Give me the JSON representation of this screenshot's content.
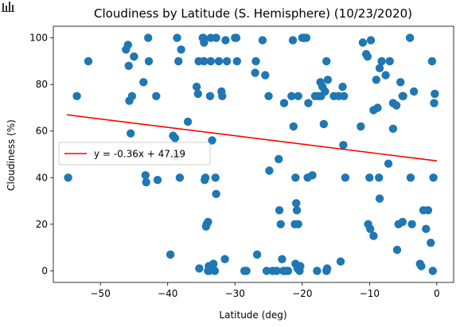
{
  "toolbar": {
    "chart_icon": "bar-chart-icon"
  },
  "chart_data": {
    "type": "scatter",
    "title": "Cloudiness by Latitude (S. Hemisphere) (10/23/2020)",
    "xlabel": "Latitude (deg)",
    "ylabel": "Cloudiness (%)",
    "xlim": [
      -57,
      2.5
    ],
    "ylim": [
      -5,
      105
    ],
    "xticks": [
      -50,
      -40,
      -30,
      -20,
      -10,
      0
    ],
    "xtick_labels": [
      "−50",
      "−40",
      "−30",
      "−20",
      "−10",
      "0"
    ],
    "yticks": [
      0,
      20,
      40,
      60,
      80,
      100
    ],
    "ytick_labels": [
      "0",
      "20",
      "40",
      "60",
      "80",
      "100"
    ],
    "grid": false,
    "legend_position": "center-left",
    "colors": {
      "points": "#1f77b4",
      "regression": "#ff0000"
    },
    "regression": {
      "label": "y = -0.36x + 47.19",
      "slope": -0.36,
      "intercept": 47.19
    },
    "points": [
      [
        -54.8,
        40
      ],
      [
        -53.5,
        75
      ],
      [
        -51.8,
        90
      ],
      [
        -46.2,
        95
      ],
      [
        -45.9,
        97
      ],
      [
        -45.8,
        88
      ],
      [
        -45.7,
        73
      ],
      [
        -45.5,
        59
      ],
      [
        -45.3,
        75
      ],
      [
        -45.0,
        92
      ],
      [
        -43.6,
        81
      ],
      [
        -43.3,
        41
      ],
      [
        -43.2,
        38
      ],
      [
        -42.9,
        100
      ],
      [
        -42.8,
        90
      ],
      [
        -41.7,
        75
      ],
      [
        -41.5,
        39
      ],
      [
        -39.6,
        7
      ],
      [
        -39.2,
        58
      ],
      [
        -38.9,
        57
      ],
      [
        -38.8,
        49
      ],
      [
        -38.6,
        100
      ],
      [
        -38.4,
        90
      ],
      [
        -38.2,
        40
      ],
      [
        -38.0,
        95
      ],
      [
        -37.0,
        64
      ],
      [
        -35.7,
        79
      ],
      [
        -35.5,
        76
      ],
      [
        -35.4,
        90
      ],
      [
        -35.3,
        1
      ],
      [
        -34.8,
        100
      ],
      [
        -34.7,
        100
      ],
      [
        -34.6,
        98
      ],
      [
        -34.6,
        90
      ],
      [
        -34.5,
        39
      ],
      [
        -34.4,
        40
      ],
      [
        -34.3,
        19
      ],
      [
        -34.2,
        20
      ],
      [
        -34.0,
        21
      ],
      [
        -34.0,
        0
      ],
      [
        -33.9,
        2
      ],
      [
        -33.8,
        0
      ],
      [
        -33.7,
        75
      ],
      [
        -33.6,
        100
      ],
      [
        -33.6,
        90
      ],
      [
        -33.4,
        56
      ],
      [
        -33.3,
        1
      ],
      [
        -33.2,
        3
      ],
      [
        -33.0,
        0
      ],
      [
        -32.9,
        40
      ],
      [
        -32.8,
        33
      ],
      [
        -32.8,
        100
      ],
      [
        -32.4,
        90
      ],
      [
        -32.0,
        77
      ],
      [
        -31.9,
        75
      ],
      [
        -31.5,
        5
      ],
      [
        -31.4,
        99
      ],
      [
        -31.2,
        90
      ],
      [
        -30.0,
        100
      ],
      [
        -29.8,
        100
      ],
      [
        -29.7,
        90
      ],
      [
        -28.6,
        0
      ],
      [
        -28.3,
        0
      ],
      [
        -27.0,
        85
      ],
      [
        -26.9,
        90
      ],
      [
        -26.7,
        7
      ],
      [
        -25.9,
        99
      ],
      [
        -25.5,
        84
      ],
      [
        -25.3,
        0
      ],
      [
        -25.0,
        75
      ],
      [
        -24.9,
        43
      ],
      [
        -24.4,
        0
      ],
      [
        -23.8,
        0
      ],
      [
        -23.5,
        48
      ],
      [
        -23.4,
        26
      ],
      [
        -23.2,
        20
      ],
      [
        -23.0,
        5
      ],
      [
        -22.8,
        0
      ],
      [
        -22.7,
        72
      ],
      [
        -22.5,
        0
      ],
      [
        -22.1,
        0
      ],
      [
        -21.6,
        75
      ],
      [
        -21.4,
        99
      ],
      [
        -21.3,
        62
      ],
      [
        -21.1,
        20
      ],
      [
        -21.0,
        3
      ],
      [
        -21.0,
        40
      ],
      [
        -20.9,
        29
      ],
      [
        -20.8,
        26
      ],
      [
        -20.7,
        1
      ],
      [
        -20.6,
        75
      ],
      [
        -20.6,
        20
      ],
      [
        -20.4,
        0
      ],
      [
        -20.3,
        2
      ],
      [
        -20.0,
        100
      ],
      [
        -19.8,
        100
      ],
      [
        -19.6,
        100
      ],
      [
        -19.4,
        100
      ],
      [
        -19.2,
        40
      ],
      [
        -19.1,
        72
      ],
      [
        -18.5,
        41
      ],
      [
        -18.1,
        75
      ],
      [
        -17.8,
        0
      ],
      [
        -17.6,
        75
      ],
      [
        -17.3,
        81
      ],
      [
        -17.2,
        75
      ],
      [
        -17.0,
        79
      ],
      [
        -16.8,
        63
      ],
      [
        -16.6,
        77
      ],
      [
        -16.4,
        90
      ],
      [
        -16.4,
        0
      ],
      [
        -16.3,
        1
      ],
      [
        -16.2,
        82
      ],
      [
        -15.3,
        75
      ],
      [
        -14.6,
        75
      ],
      [
        -14.3,
        4
      ],
      [
        -14.0,
        79
      ],
      [
        -13.9,
        54
      ],
      [
        -13.8,
        75
      ],
      [
        -13.6,
        40
      ],
      [
        -11.3,
        62
      ],
      [
        -11.0,
        98
      ],
      [
        -10.5,
        93
      ],
      [
        -10.3,
        92
      ],
      [
        -10.2,
        20
      ],
      [
        -10.0,
        40
      ],
      [
        -9.9,
        18
      ],
      [
        -9.8,
        99
      ],
      [
        -9.4,
        15
      ],
      [
        -9.4,
        69
      ],
      [
        -9.0,
        82
      ],
      [
        -8.8,
        70
      ],
      [
        -8.6,
        40
      ],
      [
        -8.5,
        87
      ],
      [
        -8.5,
        31
      ],
      [
        -8.2,
        90
      ],
      [
        -7.6,
        84
      ],
      [
        -7.2,
        46
      ],
      [
        -7.0,
        90
      ],
      [
        -6.5,
        72
      ],
      [
        -6.5,
        61
      ],
      [
        -6.0,
        71
      ],
      [
        -5.9,
        9
      ],
      [
        -5.7,
        20
      ],
      [
        -5.4,
        81
      ],
      [
        -5.1,
        75
      ],
      [
        -5.1,
        21
      ],
      [
        -5.0,
        75
      ],
      [
        -4.0,
        100
      ],
      [
        -3.9,
        40
      ],
      [
        -3.7,
        20
      ],
      [
        -3.4,
        77
      ],
      [
        -2.5,
        3
      ],
      [
        -2.3,
        2
      ],
      [
        -2.0,
        26
      ],
      [
        -1.6,
        18
      ],
      [
        -1.3,
        26
      ],
      [
        -0.9,
        12
      ],
      [
        -0.7,
        90
      ],
      [
        -0.6,
        0
      ],
      [
        -0.5,
        40
      ],
      [
        -0.4,
        72
      ],
      [
        -0.3,
        76
      ]
    ]
  }
}
